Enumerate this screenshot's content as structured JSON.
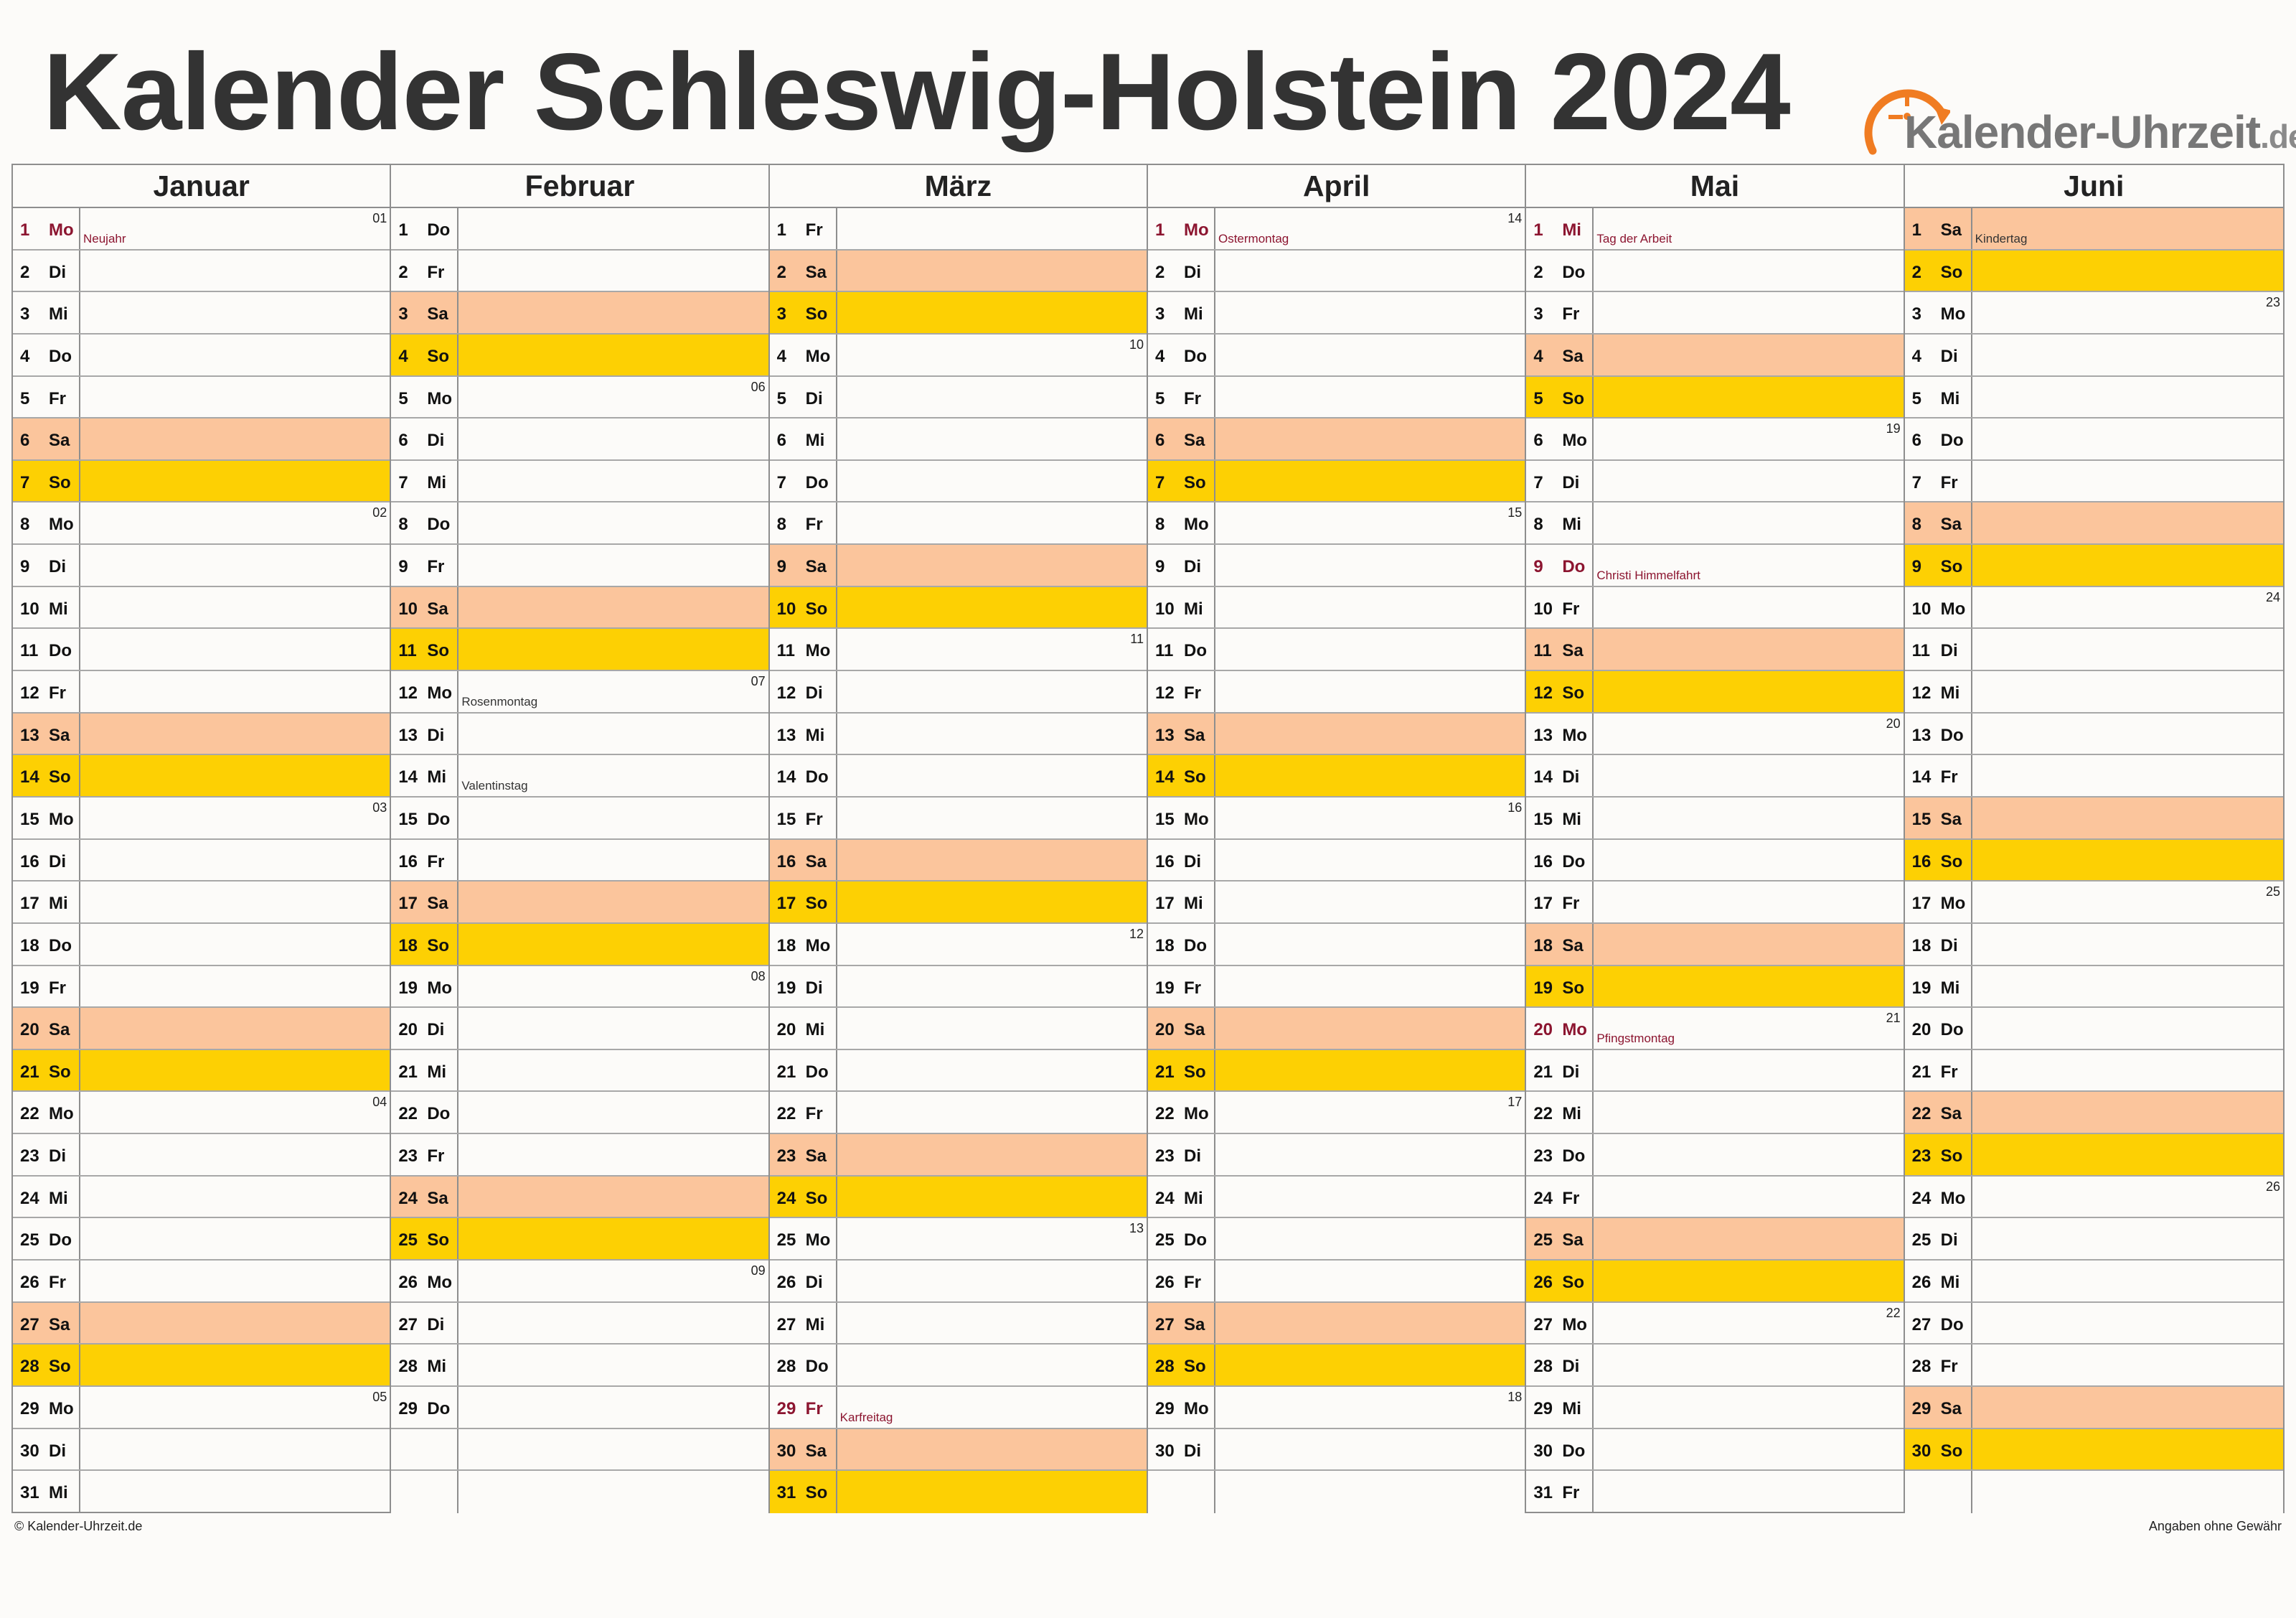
{
  "title": "Kalender Schleswig-Holstein 2024",
  "logo": {
    "text": "Kalender-Uhrzeit",
    "tld": ".de",
    "icon": "clock-arrow-icon"
  },
  "colors": {
    "saturday": "#fbc59c",
    "sunday": "#fdd003",
    "holiday_text": "#8c1530",
    "logo_orange": "#f07c22",
    "grid": "#8e8e8e"
  },
  "footer": {
    "left": "© Kalender-Uhrzeit.de",
    "right": "Angaben ohne Gewähr"
  },
  "months": [
    {
      "name": "Januar",
      "start": 1,
      "days": 31,
      "holidays": [
        {
          "day": 1,
          "label": "Neujahr",
          "public": true
        }
      ],
      "weeks": [
        {
          "day": 1,
          "kw": "01"
        },
        {
          "day": 8,
          "kw": "02"
        },
        {
          "day": 15,
          "kw": "03"
        },
        {
          "day": 22,
          "kw": "04"
        },
        {
          "day": 29,
          "kw": "05"
        }
      ]
    },
    {
      "name": "Februar",
      "start": 4,
      "days": 29,
      "holidays": [
        {
          "day": 12,
          "label": "Rosenmontag",
          "public": false
        },
        {
          "day": 14,
          "label": "Valentinstag",
          "public": false
        }
      ],
      "weeks": [
        {
          "day": 5,
          "kw": "06"
        },
        {
          "day": 12,
          "kw": "07"
        },
        {
          "day": 19,
          "kw": "08"
        },
        {
          "day": 26,
          "kw": "09"
        }
      ]
    },
    {
      "name": "März",
      "start": 5,
      "days": 31,
      "holidays": [
        {
          "day": 29,
          "label": "Karfreitag",
          "public": true
        }
      ],
      "weeks": [
        {
          "day": 4,
          "kw": "10"
        },
        {
          "day": 11,
          "kw": "11"
        },
        {
          "day": 18,
          "kw": "12"
        },
        {
          "day": 25,
          "kw": "13"
        }
      ]
    },
    {
      "name": "April",
      "start": 1,
      "days": 30,
      "holidays": [
        {
          "day": 1,
          "label": "Ostermontag",
          "public": true
        }
      ],
      "weeks": [
        {
          "day": 1,
          "kw": "14"
        },
        {
          "day": 8,
          "kw": "15"
        },
        {
          "day": 15,
          "kw": "16"
        },
        {
          "day": 22,
          "kw": "17"
        },
        {
          "day": 29,
          "kw": "18"
        }
      ]
    },
    {
      "name": "Mai",
      "start": 3,
      "days": 31,
      "holidays": [
        {
          "day": 1,
          "label": "Tag der Arbeit",
          "public": true
        },
        {
          "day": 9,
          "label": "Christi Himmelfahrt",
          "public": true
        },
        {
          "day": 20,
          "label": "Pfingstmontag",
          "public": true
        }
      ],
      "weeks": [
        {
          "day": 6,
          "kw": "19"
        },
        {
          "day": 13,
          "kw": "20"
        },
        {
          "day": 20,
          "kw": "21"
        },
        {
          "day": 27,
          "kw": "22"
        }
      ]
    },
    {
      "name": "Juni",
      "start": 6,
      "days": 30,
      "holidays": [
        {
          "day": 1,
          "label": "Kindertag",
          "public": false
        }
      ],
      "weeks": [
        {
          "day": 3,
          "kw": "23"
        },
        {
          "day": 10,
          "kw": "24"
        },
        {
          "day": 17,
          "kw": "25"
        },
        {
          "day": 24,
          "kw": "26"
        }
      ]
    }
  ],
  "weekday_abbr": [
    "Mo",
    "Di",
    "Mi",
    "Do",
    "Fr",
    "Sa",
    "So"
  ]
}
